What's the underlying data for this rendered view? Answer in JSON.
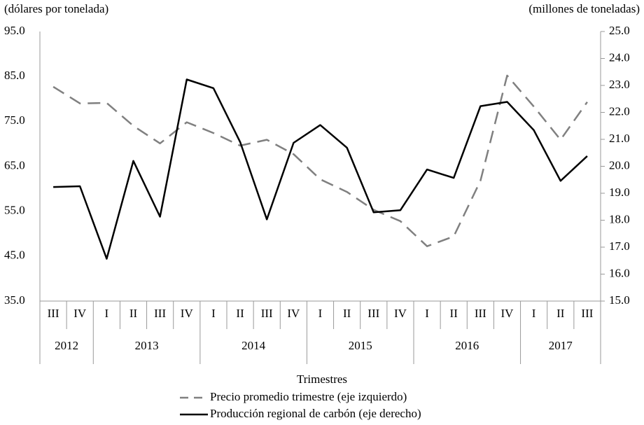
{
  "chart_data": {
    "type": "line",
    "y_label": "(dólares por tonelada)",
    "y2_label": "(millones de toneladas)",
    "x_label": "Trimestres",
    "categories": [
      "III",
      "IV",
      "I",
      "II",
      "III",
      "IV",
      "I",
      "II",
      "III",
      "IV",
      "I",
      "II",
      "III",
      "IV",
      "I",
      "II",
      "III",
      "IV",
      "I",
      "II",
      "III"
    ],
    "years": [
      "2012",
      null,
      "2013",
      null,
      null,
      null,
      "2014",
      null,
      null,
      null,
      "2015",
      null,
      null,
      null,
      "2016",
      null,
      null,
      null,
      "2017",
      null,
      null
    ],
    "series": [
      {
        "name": "Precio promedio trimestre (eje izquierdo)",
        "color": "#808080",
        "dashed": true,
        "values": [
          82.7,
          79.0,
          79.1,
          74.0,
          70.1,
          74.8,
          72.4,
          69.6,
          70.9,
          67.7,
          62.1,
          59.3,
          55.3,
          52.8,
          47.2,
          49.4,
          61.8,
          85.2,
          78.3,
          70.9,
          79.3
        ]
      },
      {
        "name": "Producción regional de carbón (eje derecho)",
        "color": "#000000",
        "axis": "y2",
        "values": [
          19.23,
          19.26,
          16.57,
          20.2,
          18.13,
          23.22,
          22.9,
          20.9,
          18.03,
          20.87,
          21.53,
          20.69,
          18.29,
          18.37,
          19.88,
          19.57,
          22.23,
          22.39,
          21.34,
          19.46,
          20.38
        ]
      }
    ],
    "ylim": [
      35,
      95
    ],
    "yticks": [
      {
        "value": 35,
        "label": "35.0"
      },
      {
        "value": 45,
        "label": "45.0"
      },
      {
        "value": 55,
        "label": "55.0"
      },
      {
        "value": 65,
        "label": "65.0"
      },
      {
        "value": 75,
        "label": "75.0"
      },
      {
        "value": 85,
        "label": "85.0"
      },
      {
        "value": 95,
        "label": "95.0"
      }
    ],
    "y2lim": [
      15,
      25
    ],
    "y2ticks": [
      {
        "value": 15,
        "label": "15.0"
      },
      {
        "value": 16,
        "label": "16.0"
      },
      {
        "value": 17,
        "label": "17.0"
      },
      {
        "value": 18,
        "label": "18.0"
      },
      {
        "value": 19,
        "label": "19.0"
      },
      {
        "value": 20,
        "label": "20.0"
      },
      {
        "value": 21,
        "label": "21.0"
      },
      {
        "value": 22,
        "label": "22.0"
      },
      {
        "value": 23,
        "label": "23.0"
      },
      {
        "value": 24,
        "label": "24.0"
      },
      {
        "value": 25,
        "label": "25.0"
      }
    ],
    "grid": false
  }
}
